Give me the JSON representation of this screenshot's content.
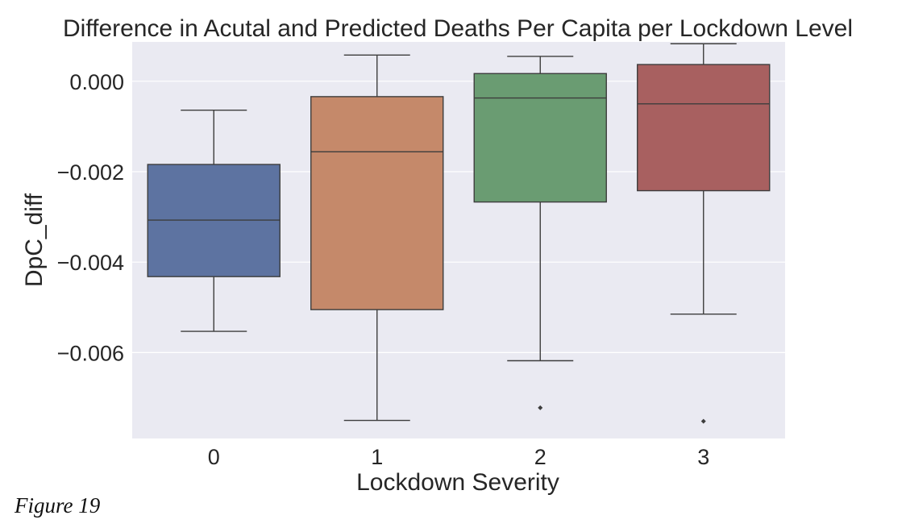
{
  "chart_data": {
    "type": "box",
    "title": "Difference in Acutal and Predicted Deaths Per Capita per Lockdown Level",
    "xlabel": "Lockdown Severity",
    "ylabel": "DpC_diff",
    "ylim": [
      -0.0079,
      0.00087
    ],
    "yticks": [
      0.0,
      -0.002,
      -0.004,
      -0.006
    ],
    "ytick_labels": [
      "0.000",
      "−0.002",
      "−0.004",
      "−0.006"
    ],
    "grid": true,
    "categories": [
      "0",
      "1",
      "2",
      "3"
    ],
    "boxes": [
      {
        "category": "0",
        "whisker_low": -0.00553,
        "q1": -0.00432,
        "median": -0.00307,
        "q3": -0.00184,
        "whisker_high": -0.00064,
        "outliers": [],
        "color": "#5d73a1"
      },
      {
        "category": "1",
        "whisker_low": -0.0075,
        "q1": -0.00505,
        "median": -0.00156,
        "q3": -0.00034,
        "whisker_high": 0.00058,
        "outliers": [],
        "color": "#c5896a"
      },
      {
        "category": "2",
        "whisker_low": -0.00618,
        "q1": -0.00267,
        "median": -0.00037,
        "q3": 0.00017,
        "whisker_high": 0.00055,
        "outliers": [
          -0.00722
        ],
        "color": "#6a9c72"
      },
      {
        "category": "3",
        "whisker_low": -0.00515,
        "q1": -0.00242,
        "median": -0.0005,
        "q3": 0.00037,
        "whisker_high": 0.00083,
        "outliers": [
          -0.00752
        ],
        "color": "#a86060"
      }
    ]
  },
  "figure_caption": "Figure 19"
}
